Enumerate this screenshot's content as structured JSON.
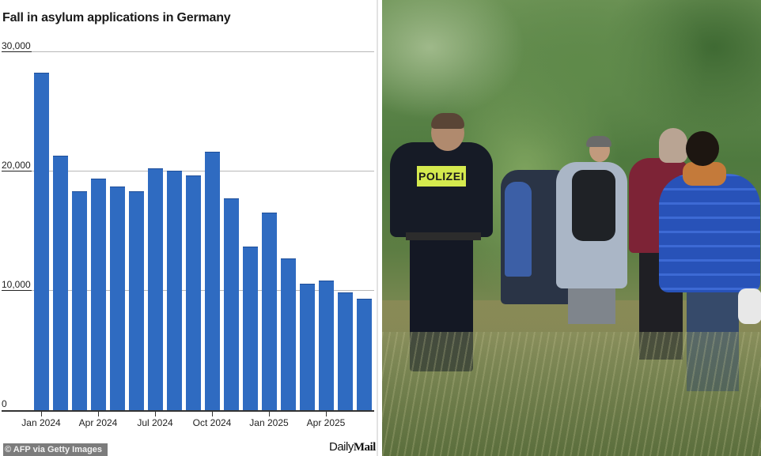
{
  "chart": {
    "title": "Fall in asylum applications in Germany",
    "y_ticks": [
      "30,000",
      "20,000",
      "10,000",
      "0"
    ],
    "x_labels": [
      "Jan 2024",
      "Apr 2024",
      "Jul 2024",
      "Oct 2024",
      "Jan 2025",
      "Apr 2025"
    ],
    "bar_color": "#2f6bc1"
  },
  "chart_data": {
    "type": "bar",
    "title": "Fall in asylum applications in Germany",
    "xlabel": "",
    "ylabel": "",
    "ylim": [
      0,
      30000
    ],
    "yticks": [
      0,
      10000,
      20000,
      30000
    ],
    "grid": true,
    "legend": null,
    "categories": [
      "Jan 2024",
      "Feb 2024",
      "Mar 2024",
      "Apr 2024",
      "May 2024",
      "Jun 2024",
      "Jul 2024",
      "Aug 2024",
      "Sep 2024",
      "Oct 2024",
      "Nov 2024",
      "Dec 2024",
      "Jan 2025",
      "Feb 2025",
      "Mar 2025",
      "Apr 2025",
      "May 2025",
      "Jun 2025"
    ],
    "values": [
      28200,
      21250,
      18280,
      19340,
      18700,
      18280,
      20200,
      20000,
      19600,
      21600,
      17700,
      13650,
      16550,
      12700,
      10600,
      10850,
      9870,
      9350
    ],
    "tick_labels_shown": [
      "Jan 2024",
      "Apr 2024",
      "Jul 2024",
      "Oct 2024",
      "Jan 2025",
      "Apr 2025"
    ]
  },
  "footer": {
    "credit": "© AFP via Getty Images",
    "brand_part1": "Daily",
    "brand_part2": "Mail"
  },
  "photo": {
    "vest_text": "POLIZEI",
    "description": "German police officer walking behind a group of migrants through a wooded area"
  }
}
